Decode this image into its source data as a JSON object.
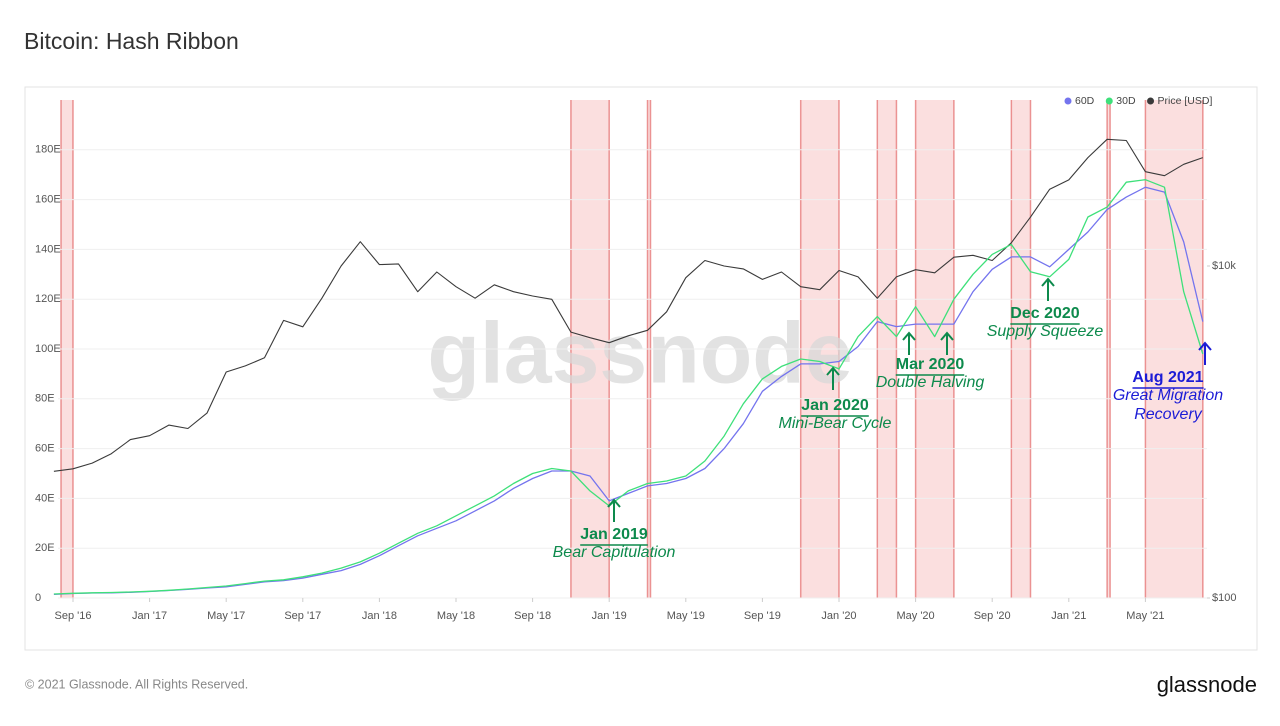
{
  "chart_data": {
    "type": "line",
    "title": "Bitcoin: Hash Ribbon",
    "watermark": "glassnode",
    "x": [
      "2016-08",
      "2016-09",
      "2016-10",
      "2016-11",
      "2016-12",
      "2017-01",
      "2017-02",
      "2017-03",
      "2017-04",
      "2017-05",
      "2017-06",
      "2017-07",
      "2017-08",
      "2017-09",
      "2017-10",
      "2017-11",
      "2017-12",
      "2018-01",
      "2018-02",
      "2018-03",
      "2018-04",
      "2018-05",
      "2018-06",
      "2018-07",
      "2018-08",
      "2018-09",
      "2018-10",
      "2018-11",
      "2018-12",
      "2019-01",
      "2019-02",
      "2019-03",
      "2019-04",
      "2019-05",
      "2019-06",
      "2019-07",
      "2019-08",
      "2019-09",
      "2019-10",
      "2019-11",
      "2019-12",
      "2020-01",
      "2020-02",
      "2020-03",
      "2020-04",
      "2020-05",
      "2020-06",
      "2020-07",
      "2020-08",
      "2020-09",
      "2020-10",
      "2020-11",
      "2020-12",
      "2021-01",
      "2021-02",
      "2021-03",
      "2021-04",
      "2021-05",
      "2021-06",
      "2021-07",
      "2021-08"
    ],
    "series": [
      {
        "name": "60D",
        "color": "#7474ee",
        "values": [
          1.5,
          1.8,
          2,
          2.1,
          2.3,
          2.6,
          3,
          3.5,
          4,
          4.5,
          5.5,
          6.5,
          7,
          8,
          9.5,
          11,
          13.5,
          17,
          21,
          25,
          28,
          31,
          35,
          39,
          44,
          48,
          51,
          51,
          49,
          39,
          42,
          45,
          46,
          48,
          52,
          60,
          70,
          83,
          89,
          94,
          94,
          95,
          101,
          111,
          109,
          110,
          110,
          110,
          123,
          132,
          137,
          137,
          133,
          140,
          147,
          156,
          161,
          165,
          163,
          143,
          111
        ]
      },
      {
        "name": "30D",
        "color": "#3ee07a",
        "values": [
          1.6,
          1.9,
          2.1,
          2.2,
          2.4,
          2.7,
          3.1,
          3.6,
          4.2,
          4.8,
          5.8,
          6.8,
          7.3,
          8.5,
          10,
          12,
          14.5,
          18,
          22,
          26,
          29,
          33,
          37,
          41,
          46,
          50,
          52,
          51,
          43,
          37,
          43,
          46,
          47,
          49,
          55,
          65,
          78,
          88,
          93,
          96,
          95,
          92,
          105,
          113,
          105,
          117,
          105,
          120,
          130,
          138,
          142,
          131,
          129,
          136,
          153,
          157,
          167,
          168,
          165,
          123,
          98
        ]
      },
      {
        "name": "Price [USD]",
        "color": "#3a3a3a",
        "axis": "y2",
        "values": [
          580,
          600,
          650,
          740,
          900,
          950,
          1100,
          1050,
          1300,
          2300,
          2500,
          2800,
          4700,
          4300,
          6400,
          10000,
          14000,
          10200,
          10300,
          7000,
          9200,
          7500,
          6400,
          7700,
          7000,
          6600,
          6300,
          4000,
          3700,
          3450,
          3800,
          4100,
          5300,
          8500,
          10800,
          10000,
          9600,
          8300,
          9200,
          7500,
          7200,
          9400,
          8600,
          6400,
          8600,
          9500,
          9100,
          11300,
          11600,
          10800,
          13800,
          19700,
          29000,
          33000,
          45000,
          58000,
          57000,
          37000,
          35000,
          41000,
          45000
        ]
      }
    ],
    "xlim": [
      "2016-08",
      "2021-08"
    ],
    "xticks": [
      {
        "value": "2016-09",
        "label": "Sep '16"
      },
      {
        "value": "2017-01",
        "label": "Jan '17"
      },
      {
        "value": "2017-05",
        "label": "May '17"
      },
      {
        "value": "2017-09",
        "label": "Sep '17"
      },
      {
        "value": "2018-01",
        "label": "Jan '18"
      },
      {
        "value": "2018-05",
        "label": "May '18"
      },
      {
        "value": "2018-09",
        "label": "Sep '18"
      },
      {
        "value": "2019-01",
        "label": "Jan '19"
      },
      {
        "value": "2019-05",
        "label": "May '19"
      },
      {
        "value": "2019-09",
        "label": "Sep '19"
      },
      {
        "value": "2020-01",
        "label": "Jan '20"
      },
      {
        "value": "2020-05",
        "label": "May '20"
      },
      {
        "value": "2020-09",
        "label": "Sep '20"
      },
      {
        "value": "2021-01",
        "label": "Jan '21"
      },
      {
        "value": "2021-05",
        "label": "May '21"
      }
    ],
    "ylim": [
      0,
      200
    ],
    "yticks": [
      0,
      {
        "value": 20,
        "label": "20E"
      },
      {
        "value": 40,
        "label": "40E"
      },
      {
        "value": 60,
        "label": "60E"
      },
      {
        "value": 80,
        "label": "80E"
      },
      {
        "value": 100,
        "label": "100E"
      },
      {
        "value": 120,
        "label": "120E"
      },
      {
        "value": 140,
        "label": "140E"
      },
      {
        "value": 160,
        "label": "160E"
      },
      {
        "value": 180,
        "label": "180E"
      }
    ],
    "y2lim": [
      100,
      100000
    ],
    "y2ticks": [
      {
        "value": 100,
        "label": "$100"
      },
      {
        "value": 10000,
        "label": "$10k"
      }
    ],
    "y2log": true,
    "grid": true,
    "legend": "top-right",
    "capitulation_bands": [
      {
        "start": "2016-08",
        "end": "2016-09"
      },
      {
        "start": "2018-11",
        "end": "2019-01"
      },
      {
        "start": "2019-03",
        "end": "2019-03"
      },
      {
        "start": "2019-11",
        "end": "2020-01"
      },
      {
        "start": "2020-03",
        "end": "2020-04"
      },
      {
        "start": "2020-05",
        "end": "2020-07"
      },
      {
        "start": "2020-10",
        "end": "2020-11"
      },
      {
        "start": "2021-03",
        "end": "2021-03"
      },
      {
        "start": "2021-05",
        "end": "2021-08"
      }
    ],
    "band_color": "#f28c8c",
    "annotations": [
      {
        "title": "Jan 2019",
        "lines": [
          "Bear Capitulation"
        ],
        "color": "#0d8a4c"
      },
      {
        "title": "Jan 2020",
        "lines": [
          "Mini-Bear Cycle"
        ],
        "color": "#0d8a4c"
      },
      {
        "title": "Mar 2020",
        "lines": [
          "Double Halving"
        ],
        "color": "#0d8a4c"
      },
      {
        "title": "Dec 2020",
        "lines": [
          "Supply Squeeze"
        ],
        "color": "#0d8a4c"
      },
      {
        "title": "Aug 2021",
        "lines": [
          "Great Migration",
          "Recovery"
        ],
        "color": "#1c1cd6"
      }
    ]
  },
  "footer": {
    "copyright": "© 2021 Glassnode. All Rights Reserved.",
    "brand": "glassnode"
  }
}
